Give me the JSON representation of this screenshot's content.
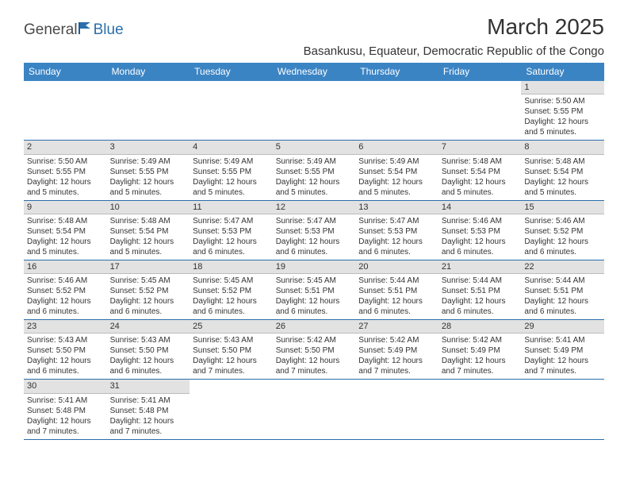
{
  "brand": {
    "part1": "General",
    "part2": "Blue"
  },
  "title": "March 2025",
  "location": "Basankusu, Equateur, Democratic Republic of the Congo",
  "colors": {
    "header_bg": "#3b84c4",
    "header_text": "#ffffff",
    "row_border": "#2b6fab",
    "daynum_bg": "#e2e2e2",
    "daynum_border": "#bcbcbc",
    "text": "#333333",
    "brand_blue": "#2b6fab",
    "brand_gray": "#4a4a4a",
    "page_bg": "#ffffff"
  },
  "fonts": {
    "month_title_pt": 28,
    "location_pt": 15,
    "dow_pt": 12,
    "daynum_pt": 11,
    "body_pt": 10,
    "logo_pt": 19
  },
  "dow": [
    "Sunday",
    "Monday",
    "Tuesday",
    "Wednesday",
    "Thursday",
    "Friday",
    "Saturday"
  ],
  "weeks": [
    [
      null,
      null,
      null,
      null,
      null,
      null,
      {
        "n": "1",
        "sr": "Sunrise: 5:50 AM",
        "ss": "Sunset: 5:55 PM",
        "d1": "Daylight: 12 hours",
        "d2": "and 5 minutes."
      }
    ],
    [
      {
        "n": "2",
        "sr": "Sunrise: 5:50 AM",
        "ss": "Sunset: 5:55 PM",
        "d1": "Daylight: 12 hours",
        "d2": "and 5 minutes."
      },
      {
        "n": "3",
        "sr": "Sunrise: 5:49 AM",
        "ss": "Sunset: 5:55 PM",
        "d1": "Daylight: 12 hours",
        "d2": "and 5 minutes."
      },
      {
        "n": "4",
        "sr": "Sunrise: 5:49 AM",
        "ss": "Sunset: 5:55 PM",
        "d1": "Daylight: 12 hours",
        "d2": "and 5 minutes."
      },
      {
        "n": "5",
        "sr": "Sunrise: 5:49 AM",
        "ss": "Sunset: 5:55 PM",
        "d1": "Daylight: 12 hours",
        "d2": "and 5 minutes."
      },
      {
        "n": "6",
        "sr": "Sunrise: 5:49 AM",
        "ss": "Sunset: 5:54 PM",
        "d1": "Daylight: 12 hours",
        "d2": "and 5 minutes."
      },
      {
        "n": "7",
        "sr": "Sunrise: 5:48 AM",
        "ss": "Sunset: 5:54 PM",
        "d1": "Daylight: 12 hours",
        "d2": "and 5 minutes."
      },
      {
        "n": "8",
        "sr": "Sunrise: 5:48 AM",
        "ss": "Sunset: 5:54 PM",
        "d1": "Daylight: 12 hours",
        "d2": "and 5 minutes."
      }
    ],
    [
      {
        "n": "9",
        "sr": "Sunrise: 5:48 AM",
        "ss": "Sunset: 5:54 PM",
        "d1": "Daylight: 12 hours",
        "d2": "and 5 minutes."
      },
      {
        "n": "10",
        "sr": "Sunrise: 5:48 AM",
        "ss": "Sunset: 5:54 PM",
        "d1": "Daylight: 12 hours",
        "d2": "and 5 minutes."
      },
      {
        "n": "11",
        "sr": "Sunrise: 5:47 AM",
        "ss": "Sunset: 5:53 PM",
        "d1": "Daylight: 12 hours",
        "d2": "and 6 minutes."
      },
      {
        "n": "12",
        "sr": "Sunrise: 5:47 AM",
        "ss": "Sunset: 5:53 PM",
        "d1": "Daylight: 12 hours",
        "d2": "and 6 minutes."
      },
      {
        "n": "13",
        "sr": "Sunrise: 5:47 AM",
        "ss": "Sunset: 5:53 PM",
        "d1": "Daylight: 12 hours",
        "d2": "and 6 minutes."
      },
      {
        "n": "14",
        "sr": "Sunrise: 5:46 AM",
        "ss": "Sunset: 5:53 PM",
        "d1": "Daylight: 12 hours",
        "d2": "and 6 minutes."
      },
      {
        "n": "15",
        "sr": "Sunrise: 5:46 AM",
        "ss": "Sunset: 5:52 PM",
        "d1": "Daylight: 12 hours",
        "d2": "and 6 minutes."
      }
    ],
    [
      {
        "n": "16",
        "sr": "Sunrise: 5:46 AM",
        "ss": "Sunset: 5:52 PM",
        "d1": "Daylight: 12 hours",
        "d2": "and 6 minutes."
      },
      {
        "n": "17",
        "sr": "Sunrise: 5:45 AM",
        "ss": "Sunset: 5:52 PM",
        "d1": "Daylight: 12 hours",
        "d2": "and 6 minutes."
      },
      {
        "n": "18",
        "sr": "Sunrise: 5:45 AM",
        "ss": "Sunset: 5:52 PM",
        "d1": "Daylight: 12 hours",
        "d2": "and 6 minutes."
      },
      {
        "n": "19",
        "sr": "Sunrise: 5:45 AM",
        "ss": "Sunset: 5:51 PM",
        "d1": "Daylight: 12 hours",
        "d2": "and 6 minutes."
      },
      {
        "n": "20",
        "sr": "Sunrise: 5:44 AM",
        "ss": "Sunset: 5:51 PM",
        "d1": "Daylight: 12 hours",
        "d2": "and 6 minutes."
      },
      {
        "n": "21",
        "sr": "Sunrise: 5:44 AM",
        "ss": "Sunset: 5:51 PM",
        "d1": "Daylight: 12 hours",
        "d2": "and 6 minutes."
      },
      {
        "n": "22",
        "sr": "Sunrise: 5:44 AM",
        "ss": "Sunset: 5:51 PM",
        "d1": "Daylight: 12 hours",
        "d2": "and 6 minutes."
      }
    ],
    [
      {
        "n": "23",
        "sr": "Sunrise: 5:43 AM",
        "ss": "Sunset: 5:50 PM",
        "d1": "Daylight: 12 hours",
        "d2": "and 6 minutes."
      },
      {
        "n": "24",
        "sr": "Sunrise: 5:43 AM",
        "ss": "Sunset: 5:50 PM",
        "d1": "Daylight: 12 hours",
        "d2": "and 6 minutes."
      },
      {
        "n": "25",
        "sr": "Sunrise: 5:43 AM",
        "ss": "Sunset: 5:50 PM",
        "d1": "Daylight: 12 hours",
        "d2": "and 7 minutes."
      },
      {
        "n": "26",
        "sr": "Sunrise: 5:42 AM",
        "ss": "Sunset: 5:50 PM",
        "d1": "Daylight: 12 hours",
        "d2": "and 7 minutes."
      },
      {
        "n": "27",
        "sr": "Sunrise: 5:42 AM",
        "ss": "Sunset: 5:49 PM",
        "d1": "Daylight: 12 hours",
        "d2": "and 7 minutes."
      },
      {
        "n": "28",
        "sr": "Sunrise: 5:42 AM",
        "ss": "Sunset: 5:49 PM",
        "d1": "Daylight: 12 hours",
        "d2": "and 7 minutes."
      },
      {
        "n": "29",
        "sr": "Sunrise: 5:41 AM",
        "ss": "Sunset: 5:49 PM",
        "d1": "Daylight: 12 hours",
        "d2": "and 7 minutes."
      }
    ],
    [
      {
        "n": "30",
        "sr": "Sunrise: 5:41 AM",
        "ss": "Sunset: 5:48 PM",
        "d1": "Daylight: 12 hours",
        "d2": "and 7 minutes."
      },
      {
        "n": "31",
        "sr": "Sunrise: 5:41 AM",
        "ss": "Sunset: 5:48 PM",
        "d1": "Daylight: 12 hours",
        "d2": "and 7 minutes."
      },
      null,
      null,
      null,
      null,
      null
    ]
  ]
}
